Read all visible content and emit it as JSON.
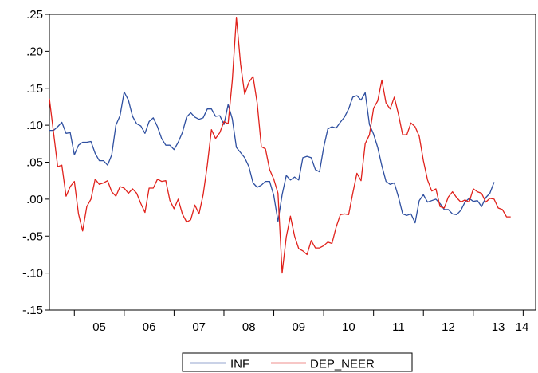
{
  "chart_data": {
    "type": "line",
    "title": "",
    "xlabel": "",
    "ylabel": "",
    "ylim": [
      -0.15,
      0.25
    ],
    "y_ticks": [
      0.25,
      0.2,
      0.15,
      0.1,
      0.05,
      0.0,
      -0.05,
      -0.1,
      -0.15
    ],
    "y_tick_labels": [
      ".25",
      ".20",
      ".15",
      ".10",
      ".05",
      ".00",
      "-.05",
      "-.10",
      "-.15"
    ],
    "x_start": 2004.5,
    "x_end": 2014.25,
    "x_tick_years": [
      "05",
      "06",
      "07",
      "08",
      "09",
      "10",
      "11",
      "12",
      "13",
      "14"
    ],
    "grid": false,
    "legend_position": "bottom-center",
    "series": [
      {
        "name": "INF",
        "color": "#2E4FA0",
        "start": 2004.5,
        "step": 0.0833333,
        "values": [
          0.093,
          0.093,
          0.098,
          0.104,
          0.089,
          0.09,
          0.06,
          0.073,
          0.077,
          0.077,
          0.078,
          0.062,
          0.052,
          0.052,
          0.046,
          0.06,
          0.1,
          0.113,
          0.145,
          0.134,
          0.112,
          0.102,
          0.099,
          0.089,
          0.105,
          0.11,
          0.098,
          0.082,
          0.073,
          0.073,
          0.067,
          0.077,
          0.09,
          0.111,
          0.117,
          0.111,
          0.108,
          0.11,
          0.122,
          0.122,
          0.112,
          0.113,
          0.101,
          0.128,
          0.109,
          0.07,
          0.063,
          0.056,
          0.044,
          0.022,
          0.016,
          0.019,
          0.024,
          0.024,
          0.005,
          -0.03,
          0.006,
          0.032,
          0.026,
          0.03,
          0.026,
          0.056,
          0.058,
          0.056,
          0.04,
          0.037,
          0.07,
          0.095,
          0.098,
          0.096,
          0.104,
          0.111,
          0.122,
          0.138,
          0.14,
          0.134,
          0.144,
          0.101,
          0.088,
          0.07,
          0.045,
          0.024,
          0.02,
          0.022,
          0.003,
          -0.02,
          -0.022,
          -0.02,
          -0.032,
          -0.002,
          0.006,
          -0.004,
          -0.002,
          0.0,
          -0.006,
          -0.014,
          -0.014,
          -0.02,
          -0.021,
          -0.015,
          -0.004,
          0.001,
          -0.003,
          -0.002,
          -0.01,
          0.002,
          0.008,
          0.023
        ]
      },
      {
        "name": "DEP_NEER",
        "color": "#E0211B",
        "start": 2004.5,
        "step": 0.0833333,
        "values": [
          0.136,
          0.09,
          0.044,
          0.046,
          0.004,
          0.017,
          0.024,
          -0.02,
          -0.043,
          -0.01,
          0.0,
          0.027,
          0.02,
          0.022,
          0.025,
          0.01,
          0.004,
          0.017,
          0.015,
          0.008,
          0.014,
          0.008,
          -0.006,
          -0.018,
          0.015,
          0.015,
          0.027,
          0.024,
          0.025,
          -0.002,
          -0.013,
          0.0,
          -0.02,
          -0.031,
          -0.028,
          -0.008,
          -0.02,
          0.006,
          0.046,
          0.094,
          0.082,
          0.09,
          0.105,
          0.102,
          0.16,
          0.246,
          0.183,
          0.142,
          0.158,
          0.166,
          0.13,
          0.071,
          0.068,
          0.04,
          0.027,
          0.008,
          -0.1,
          -0.051,
          -0.023,
          -0.05,
          -0.067,
          -0.07,
          -0.075,
          -0.056,
          -0.066,
          -0.066,
          -0.063,
          -0.058,
          -0.06,
          -0.038,
          -0.021,
          -0.02,
          -0.021,
          0.008,
          0.035,
          0.025,
          0.075,
          0.087,
          0.123,
          0.133,
          0.161,
          0.13,
          0.122,
          0.138,
          0.115,
          0.087,
          0.087,
          0.103,
          0.098,
          0.085,
          0.052,
          0.026,
          0.011,
          0.014,
          -0.01,
          -0.012,
          0.003,
          0.01,
          0.002,
          -0.004,
          -0.001,
          -0.004,
          0.014,
          0.01,
          0.008,
          -0.004,
          0.001,
          0.0,
          -0.012,
          -0.014,
          -0.024,
          -0.024
        ]
      }
    ]
  }
}
